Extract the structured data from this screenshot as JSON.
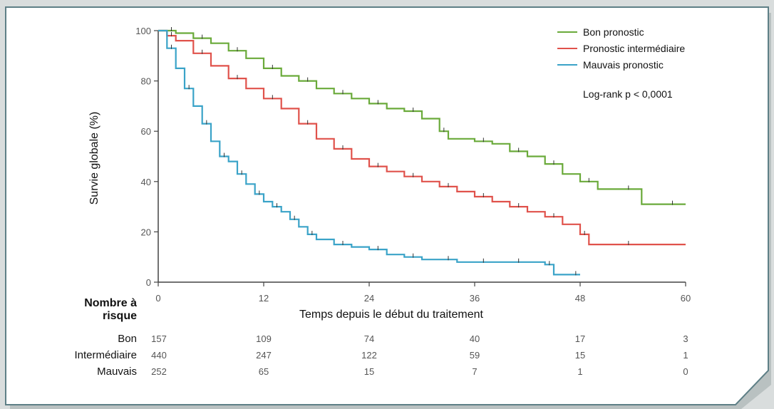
{
  "chart_data": {
    "type": "line",
    "xlabel": "Temps depuis le début du traitement",
    "ylabel": "Survie globale (%)",
    "xlim": [
      0,
      60
    ],
    "ylim": [
      0,
      100
    ],
    "x_ticks": [
      0,
      12,
      24,
      36,
      48,
      60
    ],
    "y_ticks": [
      0,
      20,
      40,
      60,
      80,
      100
    ],
    "grid": false,
    "legend_position": "top-right",
    "annotation": "Log-rank p < 0,0001",
    "colors": {
      "bon": "#6aaa3a",
      "intermediaire": "#e0524b",
      "mauvais": "#3aa3c8",
      "frame": "#5e7f86"
    },
    "series": [
      {
        "name": "Bon pronostic",
        "key": "bon",
        "x": [
          0,
          1,
          2,
          4,
          6,
          8,
          10,
          12,
          14,
          16,
          18,
          20,
          22,
          24,
          26,
          28,
          30,
          32,
          33,
          36,
          38,
          40,
          42,
          44,
          46,
          48,
          50,
          52,
          55,
          57,
          60
        ],
        "y": [
          100,
          100,
          99,
          97,
          95,
          92,
          89,
          85,
          82,
          80,
          77,
          75,
          73,
          71,
          69,
          68,
          65,
          60,
          57,
          56,
          55,
          52,
          50,
          47,
          43,
          40,
          37,
          37,
          31,
          31,
          31
        ]
      },
      {
        "name": "Pronostic intermédiaire",
        "key": "intermediaire",
        "x": [
          0,
          1,
          2,
          4,
          6,
          8,
          10,
          12,
          14,
          16,
          18,
          20,
          22,
          24,
          26,
          28,
          30,
          32,
          34,
          36,
          38,
          40,
          42,
          44,
          46,
          48,
          49,
          52,
          55,
          60
        ],
        "y": [
          100,
          98,
          96,
          91,
          86,
          81,
          77,
          73,
          69,
          63,
          57,
          53,
          49,
          46,
          44,
          42,
          40,
          38,
          36,
          34,
          32,
          30,
          28,
          26,
          23,
          19,
          15,
          15,
          15,
          15
        ]
      },
      {
        "name": "Mauvais pronostic",
        "key": "mauvais",
        "x": [
          0,
          1,
          2,
          3,
          4,
          5,
          6,
          7,
          8,
          9,
          10,
          11,
          12,
          13,
          14,
          15,
          16,
          17,
          18,
          20,
          22,
          24,
          26,
          28,
          30,
          32,
          34,
          36,
          38,
          40,
          42,
          44,
          45,
          47,
          48
        ],
        "y": [
          100,
          93,
          85,
          77,
          70,
          63,
          56,
          50,
          48,
          43,
          39,
          35,
          32,
          30,
          28,
          25,
          22,
          19,
          17,
          15,
          14,
          13,
          11,
          10,
          9,
          9,
          8,
          8,
          8,
          8,
          8,
          7,
          3,
          3,
          3
        ]
      }
    ],
    "risk_table": {
      "title": "Nombre à risque",
      "time_points": [
        0,
        12,
        24,
        36,
        48,
        60
      ],
      "rows": [
        {
          "label": "Bon",
          "values": [
            "157",
            "109",
            "74",
            "40",
            "17",
            "3"
          ]
        },
        {
          "label": "Intermédiaire",
          "values": [
            "440",
            "247",
            "122",
            "59",
            "15",
            "1"
          ]
        },
        {
          "label": "Mauvais",
          "values": [
            "252",
            "65",
            "15",
            "7",
            "1",
            "0"
          ]
        }
      ]
    }
  }
}
